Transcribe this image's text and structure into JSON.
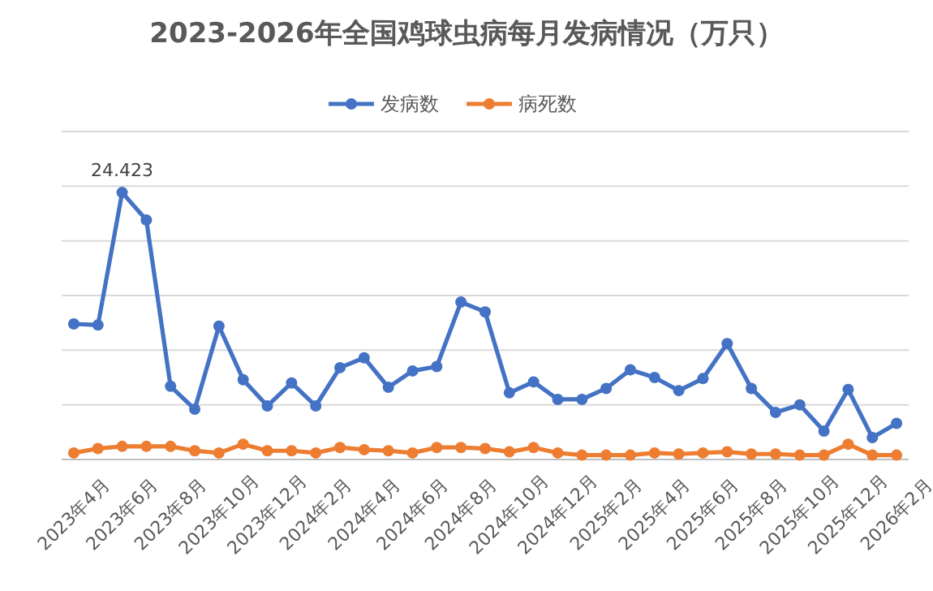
{
  "chart_data": {
    "type": "line",
    "title": "2023-2026年全国鸡球虫病每月发病情况（万只）",
    "categories": [
      "2023年4月",
      null,
      "2023年6月",
      null,
      "2023年8月",
      null,
      "2023年10月",
      null,
      "2023年12月",
      null,
      "2024年2月",
      null,
      "2024年4月",
      null,
      "2024年6月",
      null,
      "2024年8月",
      null,
      "2024年10月",
      null,
      "2024年12月",
      null,
      "2025年2月",
      null,
      "2025年4月",
      null,
      "2025年6月",
      null,
      "2025年8月",
      null,
      "2025年10月",
      null,
      "2025年12月",
      null,
      "2026年2月"
    ],
    "series": [
      {
        "name": "发病数",
        "color": "#4472c4",
        "values": [
          12.4,
          12.3,
          24.423,
          21.9,
          6.7,
          4.6,
          12.2,
          7.3,
          4.9,
          7.0,
          4.9,
          8.4,
          9.3,
          6.6,
          8.1,
          8.5,
          14.4,
          13.5,
          6.1,
          7.1,
          5.5,
          5.5,
          6.5,
          8.2,
          7.5,
          6.3,
          7.4,
          10.6,
          6.5,
          4.3,
          5.0,
          2.6,
          6.4,
          2.0,
          3.3
        ],
        "value_labels": [
          null,
          null,
          "24.423",
          null,
          null,
          null,
          null,
          null,
          null,
          null,
          null,
          null,
          null,
          null,
          null,
          null,
          null,
          null,
          null,
          null,
          null,
          null,
          null,
          null,
          null,
          null,
          null,
          null,
          null,
          null,
          null,
          null,
          null,
          null,
          null
        ]
      },
      {
        "name": "病死数",
        "color": "#ed7d31",
        "values": [
          0.6,
          1.0,
          1.2,
          1.2,
          1.2,
          0.8,
          0.6,
          1.4,
          0.8,
          0.8,
          0.6,
          1.1,
          0.9,
          0.8,
          0.6,
          1.1,
          1.1,
          1.0,
          0.7,
          1.1,
          0.6,
          0.4,
          0.4,
          0.4,
          0.6,
          0.5,
          0.6,
          0.7,
          0.5,
          0.5,
          0.4,
          0.4,
          1.4,
          0.4,
          0.4
        ]
      }
    ],
    "ylim": [
      0,
      30
    ],
    "yticks": [
      {
        "value": 0,
        "label": null
      },
      {
        "value": 5,
        "label": null
      },
      {
        "value": 10,
        "label": null
      },
      {
        "value": 15,
        "label": null
      },
      {
        "value": 20,
        "label": null
      },
      {
        "value": 25,
        "label": null
      },
      {
        "value": 30,
        "label": null
      }
    ],
    "tick_labels": "x",
    "grid": "y",
    "legend": "top",
    "marker": "circle",
    "line_style": "solid"
  }
}
